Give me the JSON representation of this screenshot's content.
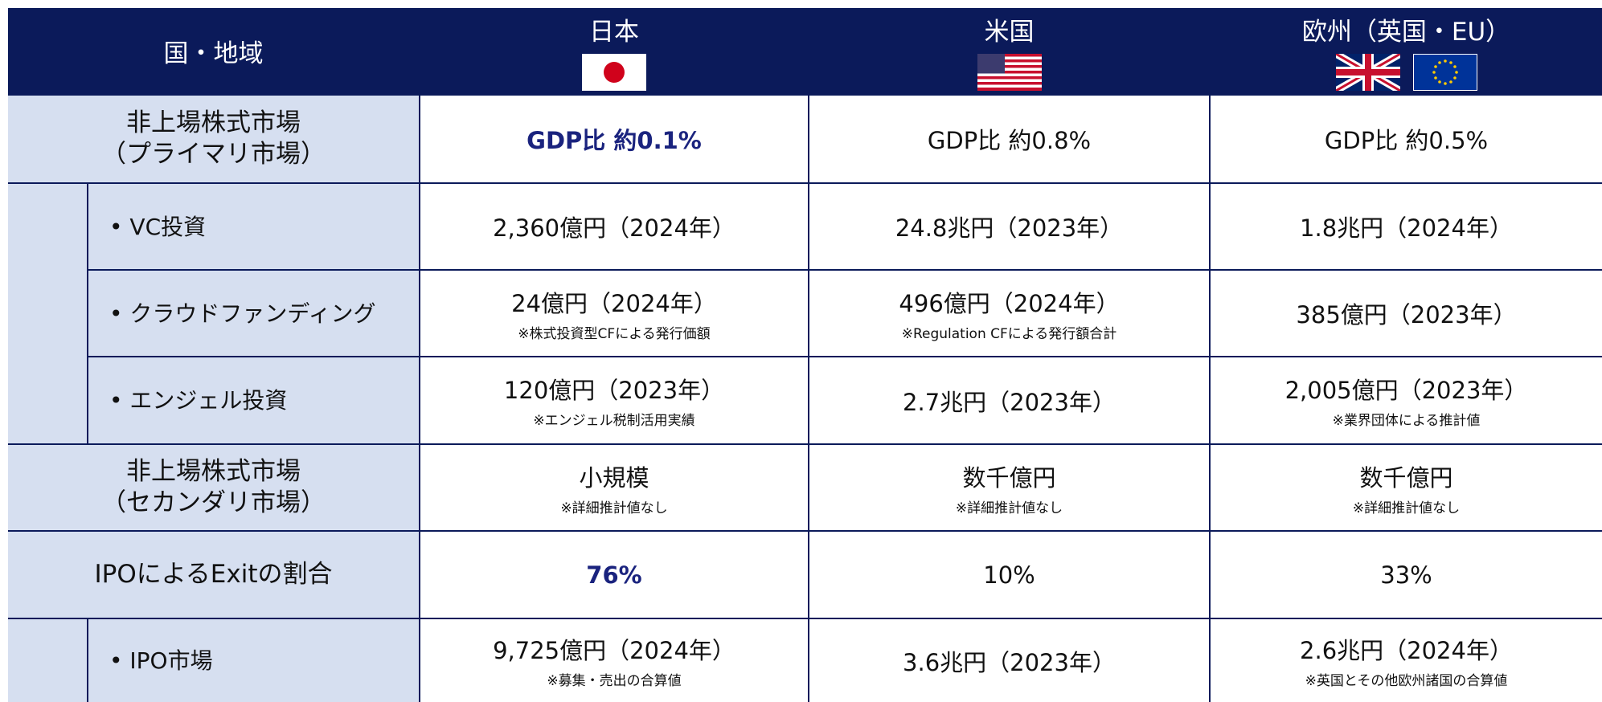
{
  "header": {
    "label": "国・地域",
    "columns": [
      "日本",
      "米国",
      "欧州（英国・EU）"
    ]
  },
  "rows": [
    {
      "label": "非上場株式市場\n（プライマリ市場）",
      "cells": [
        {
          "text": "GDP比 約0.1%"
        },
        {
          "text": "GDP比 約0.8%"
        },
        {
          "text": "GDP比 約0.5%"
        }
      ]
    },
    {
      "label": "•  VC投資",
      "cells": [
        {
          "text": "2,360億円（2024年）"
        },
        {
          "text": "24.8兆円（2023年）"
        },
        {
          "text": "1.8兆円（2024年）"
        }
      ]
    },
    {
      "label": "•  クラウドファンディング",
      "cells": [
        {
          "text": "24億円（2024年）",
          "note": "※株式投資型CFによる発行価額"
        },
        {
          "text": "496億円（2024年）",
          "note": "※Regulation CFによる発行額合計"
        },
        {
          "text": "385億円（2023年）"
        }
      ]
    },
    {
      "label": "•  エンジェル投資",
      "cells": [
        {
          "text": "120億円（2023年）",
          "note": "※エンジェル税制活用実績"
        },
        {
          "text": "2.7兆円（2023年）"
        },
        {
          "text": "2,005億円（2023年）",
          "note": "※業界団体による推計値"
        }
      ]
    },
    {
      "label": "非上場株式市場\n（セカンダリ市場）",
      "cells": [
        {
          "text": "小規模",
          "note": "※詳細推計値なし"
        },
        {
          "text": "数千億円",
          "note": "※詳細推計値なし"
        },
        {
          "text": "数千億円",
          "note": "※詳細推計値なし"
        }
      ]
    },
    {
      "label": "IPOによるExitの割合",
      "cells": [
        {
          "text": "76%"
        },
        {
          "text": "10%"
        },
        {
          "text": "33%"
        }
      ]
    },
    {
      "label": "•  IPO市場",
      "cells": [
        {
          "text": "9,725億円（2024年）",
          "note": "※募集・売出の合算値"
        },
        {
          "text": "3.6兆円（2023年）"
        },
        {
          "text": "2.6兆円（2024年）",
          "note": "※英国とその他欧州諸国の合算値"
        }
      ]
    }
  ]
}
